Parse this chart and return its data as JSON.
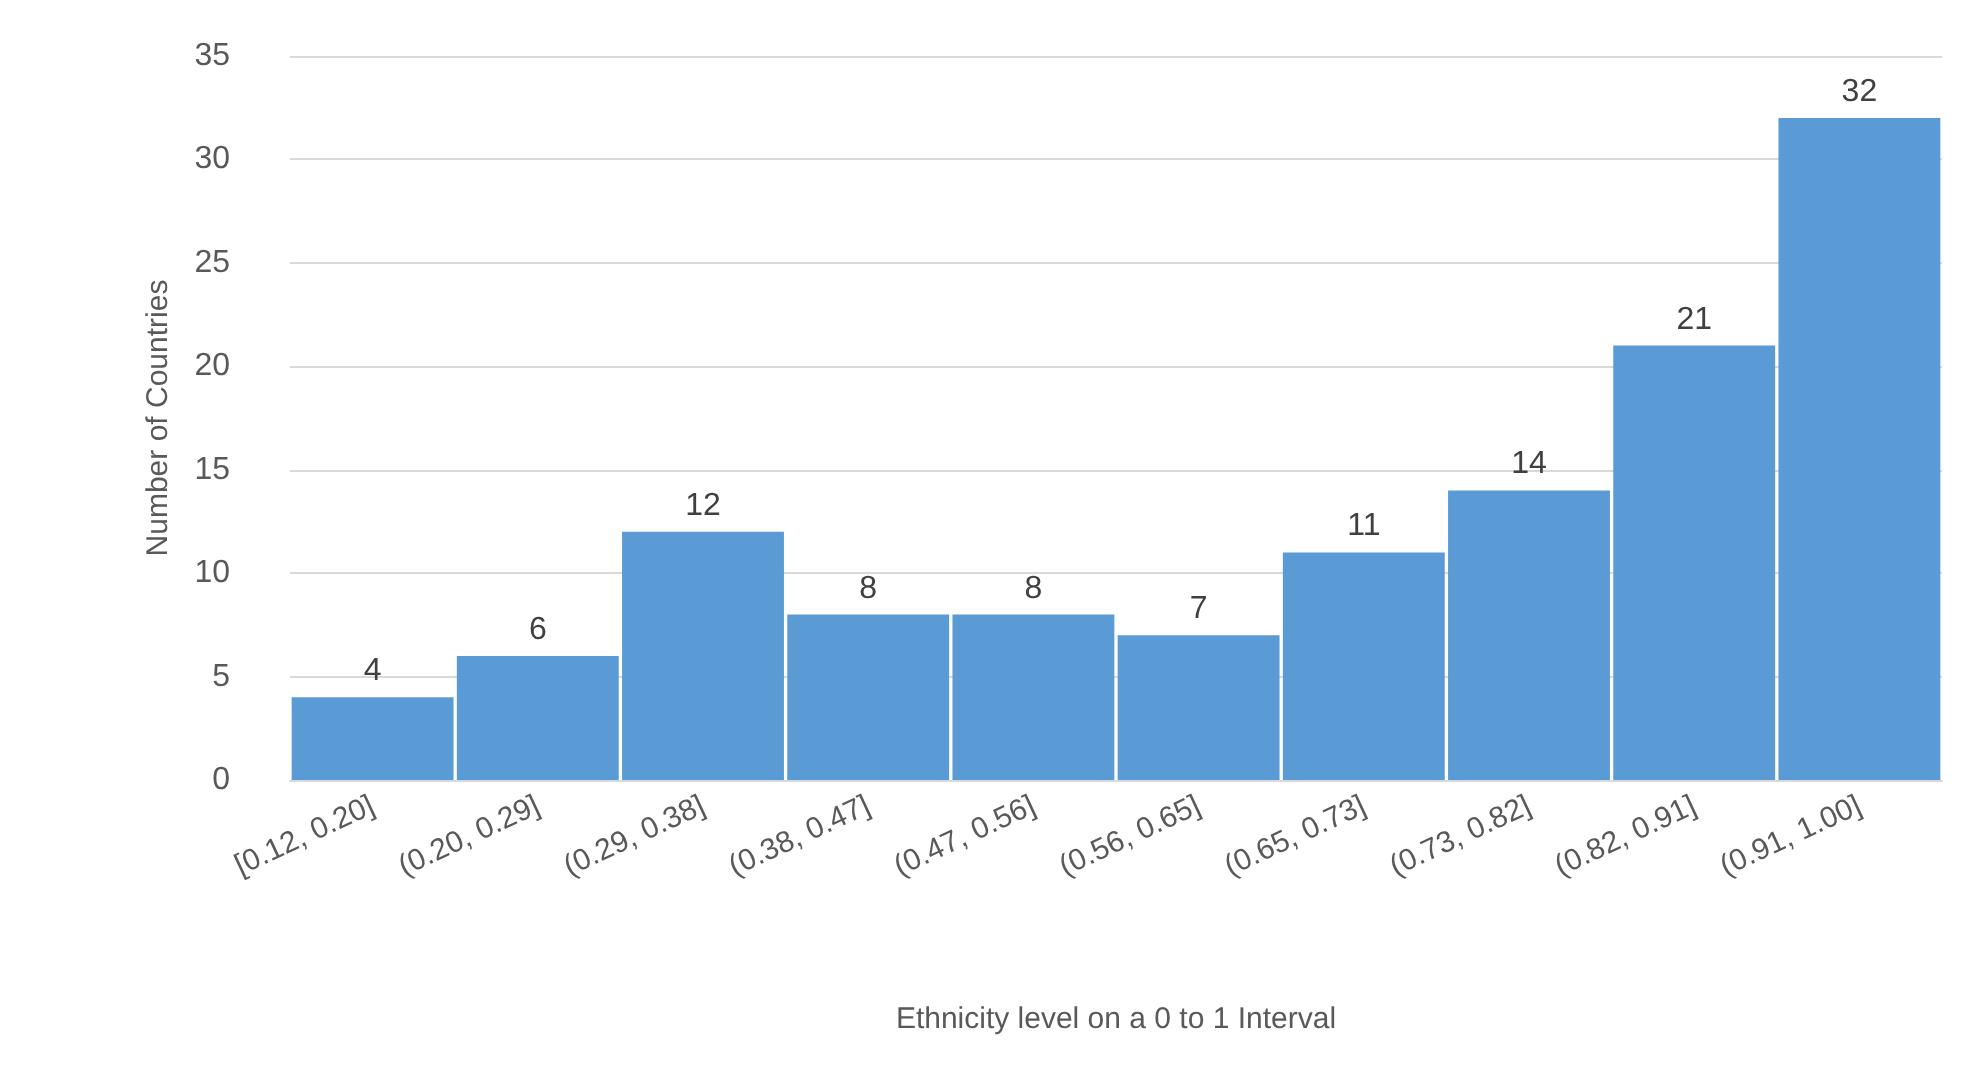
{
  "chart_data": {
    "type": "bar",
    "xlabel": "Ethnicity level on a 0 to 1 Interval",
    "ylabel": "Number of Countries",
    "categories": [
      "[0.12, 0.20]",
      "(0.20, 0.29]",
      "(0.29, 0.38]",
      "(0.38, 0.47]",
      "(0.47, 0.56]",
      "(0.56, 0.65]",
      "(0.65, 0.73]",
      "(0.73, 0.82]",
      "(0.82, 0.91]",
      "(0.91, 1.00]"
    ],
    "values": [
      4,
      6,
      12,
      8,
      8,
      7,
      11,
      14,
      21,
      32
    ],
    "color": "#5b9bd5",
    "ylim": [
      0,
      35
    ],
    "yticks": [
      0,
      5,
      10,
      15,
      20,
      25,
      30,
      35
    ],
    "grid": "y",
    "data_labels": true
  }
}
